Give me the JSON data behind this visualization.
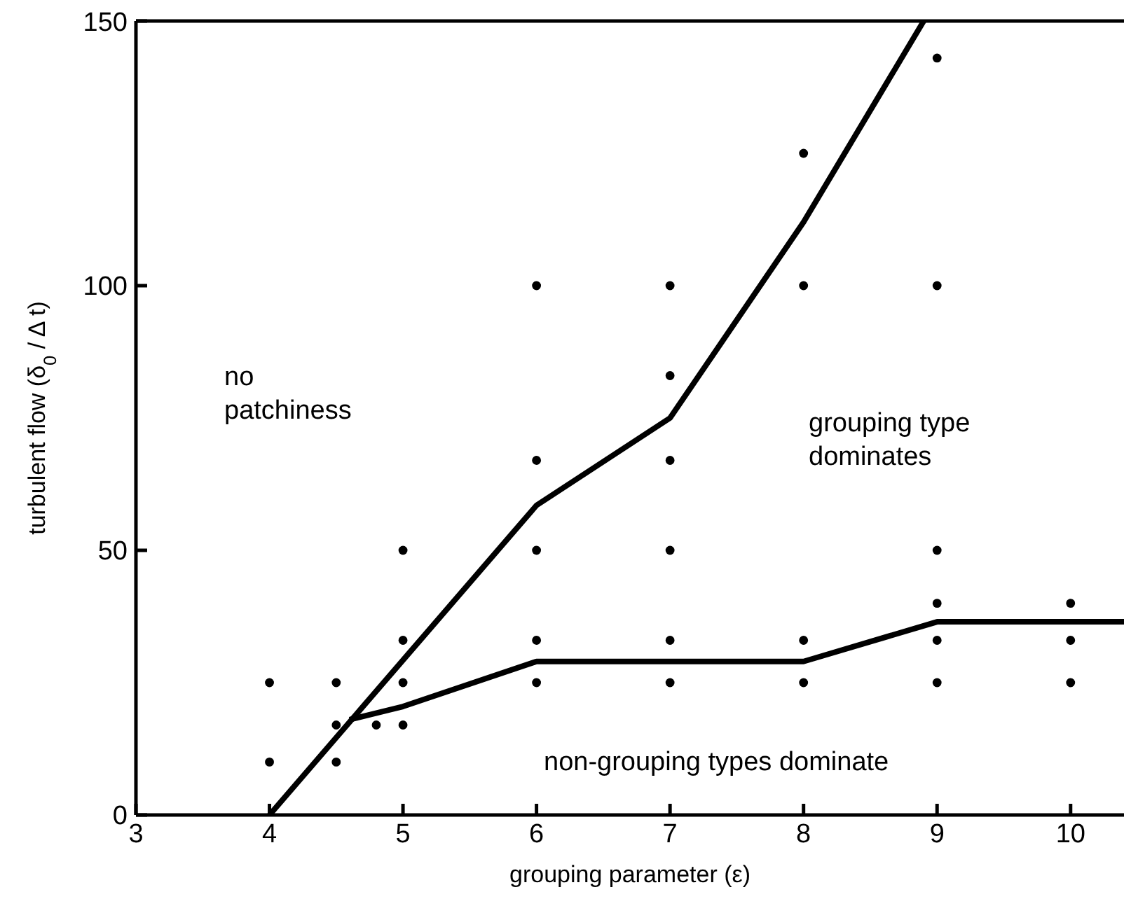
{
  "chart_data": {
    "type": "scatter",
    "xlabel": "grouping parameter (ε)",
    "ylabel": "turbulent flow (δ$_{0}$ / Δ t)",
    "xlim": [
      3,
      10.4
    ],
    "xticks": [
      3,
      4,
      5,
      6,
      7,
      8,
      9,
      10
    ],
    "ylim": [
      0,
      150
    ],
    "yticks": [
      0,
      50,
      100,
      150
    ],
    "grid": false,
    "legend": false,
    "series": [
      {
        "marker": "circle",
        "color": "#000000",
        "x": [
          4,
          4,
          4.5,
          4.5,
          4.5,
          4.8,
          5,
          5,
          5,
          5,
          6,
          6,
          6,
          6,
          6,
          7,
          7,
          7,
          7,
          7,
          7,
          8,
          8,
          8,
          8,
          9,
          9,
          9,
          9,
          9,
          9,
          10,
          10,
          10
        ],
        "values": [
          10,
          25,
          10,
          17,
          25,
          17,
          17,
          25,
          33,
          50,
          25,
          33,
          50,
          67,
          100,
          25,
          33,
          50,
          67,
          83,
          100,
          25,
          33,
          100,
          125,
          25,
          33,
          40,
          50,
          100,
          143,
          25,
          33,
          40
        ]
      },
      {
        "type": "line",
        "marker": "none",
        "color": "#000000",
        "x": [
          4,
          6,
          7,
          8,
          8.9
        ],
        "values": [
          0,
          58.5,
          75,
          112,
          150
        ]
      },
      {
        "type": "line",
        "marker": "none",
        "color": "#000000",
        "x": [
          4.6,
          5,
          6,
          8,
          9,
          10.4
        ],
        "values": [
          18,
          20.5,
          29,
          29,
          36.5,
          36.5
        ]
      }
    ],
    "annotations": [
      "no\npatchiness",
      "grouping type\ndominates",
      "non-grouping types dominate"
    ]
  }
}
